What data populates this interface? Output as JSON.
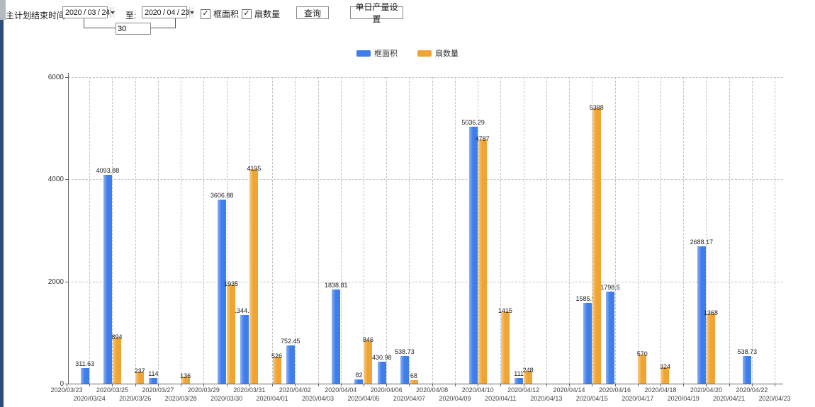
{
  "toolbar": {
    "label_plan_end": "主计划结束时间:",
    "date_from": "2020 / 03 / 24",
    "label_to": "至:",
    "date_to": "2020 / 04 / 23",
    "days_value": "30",
    "checkbox_checked_glyph": "✓",
    "checkbox_area_label": "框面积",
    "checkbox_fan_label": "扇数量",
    "query_button": "查询",
    "daily_output_button": "单日产量设置"
  },
  "legend": {
    "items": [
      {
        "label": "框面积",
        "color": "#3e7eec"
      },
      {
        "label": "扇数量",
        "color": "#f0a434"
      }
    ]
  },
  "chart_data": {
    "type": "bar",
    "title": "",
    "xlabel": "",
    "ylabel": "",
    "ylim": [
      0,
      6000
    ],
    "yticks": [
      0,
      2000,
      4000,
      6000
    ],
    "grid": "dashed",
    "legend_position": "top-center",
    "categories": [
      "2020/03/23",
      "2020/03/24",
      "2020/03/25",
      "2020/03/26",
      "2020/03/27",
      "2020/03/28",
      "2020/03/29",
      "2020/03/30",
      "2020/03/31",
      "2020/04/01",
      "2020/04/02",
      "2020/04/03",
      "2020/04/04",
      "2020/04/05",
      "2020/04/06",
      "2020/04/07",
      "2020/04/08",
      "2020/04/09",
      "2020/04/10",
      "2020/04/11",
      "2020/04/12",
      "2020/04/13",
      "2020/04/14",
      "2020/04/15",
      "2020/04/16",
      "2020/04/17",
      "2020/04/18",
      "2020/04/19",
      "2020/04/20",
      "2020/04/21",
      "2020/04/22",
      "2020/04/23"
    ],
    "series": [
      {
        "name": "框面积",
        "color": "#3e7eec",
        "values": [
          0,
          311.63,
          4093.88,
          0,
          114,
          0,
          0,
          3606.88,
          1344.95,
          0,
          752.45,
          0,
          1838.81,
          82,
          430.98,
          538.73,
          0,
          0,
          5036.29,
          0,
          111,
          0,
          0,
          1585.96,
          1798.5,
          0,
          0,
          0,
          2688.17,
          0,
          538.73,
          0
        ]
      },
      {
        "name": "扇数量",
        "color": "#f0a434",
        "values": [
          0,
          0,
          894,
          237,
          0,
          136,
          0,
          1935,
          4195,
          526,
          0,
          0,
          0,
          846,
          0,
          68,
          0,
          0,
          4787,
          1415,
          248,
          0,
          0,
          5388,
          0,
          570,
          324,
          0,
          1368,
          0,
          0,
          0
        ]
      }
    ]
  }
}
